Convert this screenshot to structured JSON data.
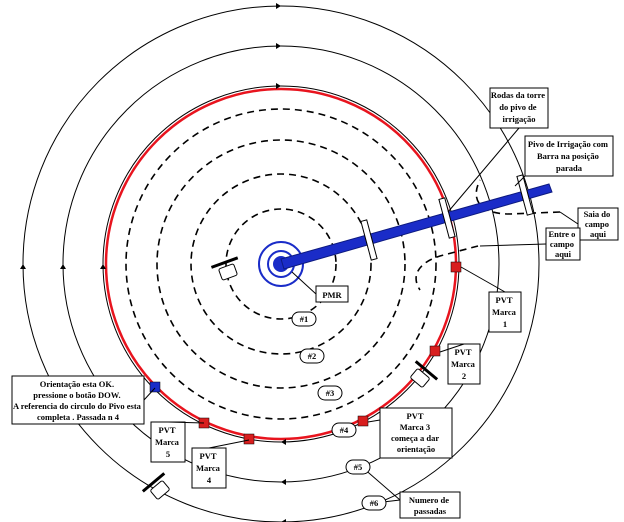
{
  "colors": {
    "field_circle": "#000000",
    "marked_circle": "#e8141e",
    "pivot": "#1a2cc8",
    "pvt_marker": "#d81e1e",
    "done_marker": "#1a2cc8"
  },
  "icons": [
    "tractor-icon",
    "arrow-icon"
  ],
  "labels": {
    "wheels": [
      "Rodas da torre",
      "do pivo de",
      "irrigação"
    ],
    "pivot_bar": [
      "Pivo de Irrigação com",
      "Barra na posição",
      "parada"
    ],
    "exit": [
      "Saia do",
      "campo",
      "aqui"
    ],
    "enter": [
      "Entre o",
      "campo",
      "aqui"
    ],
    "pmr": "PMR",
    "pvt1": [
      "PVT",
      "Marca",
      "1"
    ],
    "pvt2": [
      "PVT",
      "Marca",
      "2"
    ],
    "pvt3": [
      "PVT",
      "Marca 3",
      "começa a dar",
      "orientação"
    ],
    "pvt4": [
      "PVT",
      "Marca",
      "4"
    ],
    "pvt5": [
      "PVT",
      "Marca",
      "5"
    ],
    "orientation": [
      "Orientação esta OK.",
      "pressione o botão DOW.",
      "A referencia do circulo do Pivo esta",
      "completa . Passada  n 4"
    ],
    "numero": [
      "Numero de",
      "passadas"
    ]
  },
  "passes": [
    "#1",
    "#2",
    "#3",
    "#4",
    "#5",
    "#6"
  ]
}
